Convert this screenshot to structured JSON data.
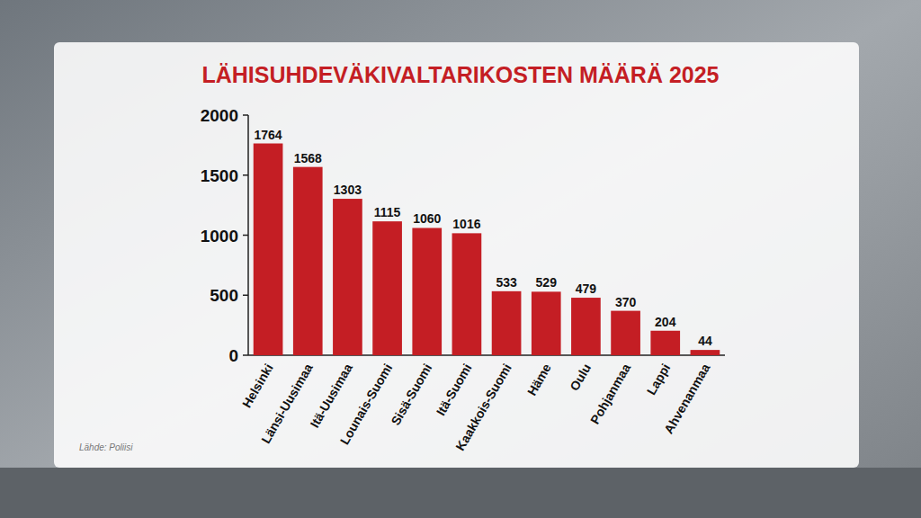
{
  "chart_data": {
    "type": "bar",
    "title": "LÄHISUHDEVÄKIVALTARIKOSTEN MÄÄRÄ 2025",
    "categories": [
      "Helsinki",
      "Länsi-Uusimaa",
      "Itä-Uusimaa",
      "Lounais-Suomi",
      "Sisä-Suomi",
      "Itä-Suomi",
      "Kaakkois-Suomi",
      "Häme",
      "Oulu",
      "Pohjanmaa",
      "Lappi",
      "Ahvenanmaa"
    ],
    "values": [
      1764,
      1568,
      1303,
      1115,
      1060,
      1016,
      533,
      529,
      479,
      370,
      204,
      44
    ],
    "color": "#c41e24",
    "ylim": [
      0,
      2000
    ],
    "yticks": [
      0,
      500,
      1000,
      1500,
      2000
    ],
    "grid": false,
    "data_labels": true,
    "source": "Lähde: Poliisi"
  }
}
